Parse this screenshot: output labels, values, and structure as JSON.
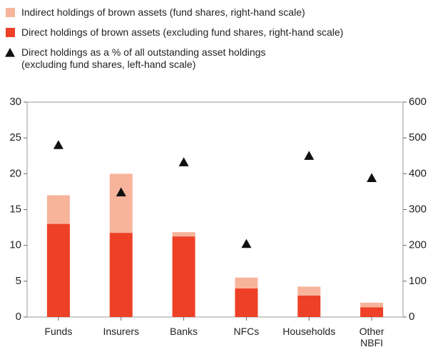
{
  "chart_data": {
    "type": "bar",
    "categories": [
      "Funds",
      "Insurers",
      "Banks",
      "NFCs",
      "Households",
      "Other\nNBFI"
    ],
    "series": [
      {
        "name": "Indirect holdings of brown assets (fund shares, right-hand scale)",
        "color": "#f7b49b",
        "axis": "y2",
        "type": "bar",
        "values": [
          80,
          165,
          12,
          30,
          25,
          13
        ]
      },
      {
        "name": "Direct holdings of brown assets (excluding fund shares, right-hand scale)",
        "color": "#ee4027",
        "axis": "y2",
        "type": "bar",
        "values": [
          260,
          235,
          225,
          80,
          60,
          27
        ]
      },
      {
        "name": "Direct holdings as a % of all outstanding asset holdings\n(excluding fund shares, left-hand scale)",
        "color": "#111111",
        "axis": "y",
        "type": "triangle",
        "values": [
          24.0,
          17.4,
          21.6,
          10.2,
          22.5,
          19.4
        ]
      }
    ],
    "ylim": [
      0,
      30
    ],
    "yticks": [
      0,
      5,
      10,
      15,
      20,
      25,
      30
    ],
    "y2lim": [
      0,
      600
    ],
    "y2ticks": [
      0,
      100,
      200,
      300,
      400,
      500,
      600
    ],
    "grid": false,
    "stacked": true
  }
}
